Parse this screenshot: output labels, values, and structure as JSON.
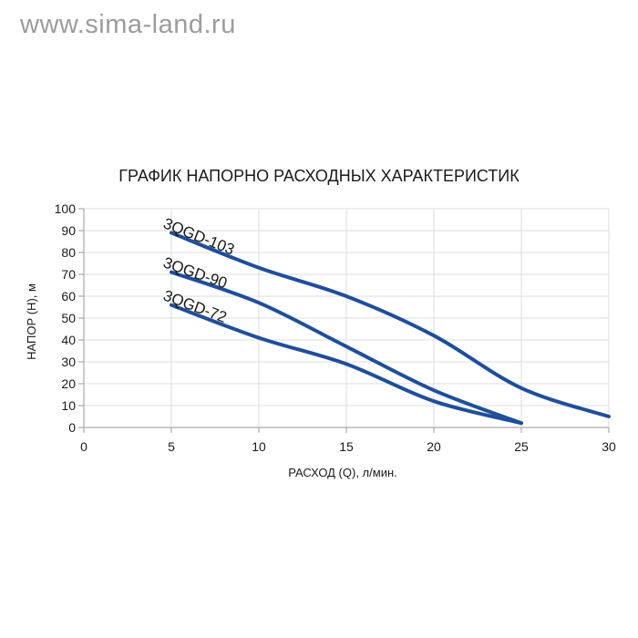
{
  "watermark": {
    "text": "www.sima-land.ru"
  },
  "colors": {
    "line": "#1f4e9b",
    "grid": "#dcdcdc",
    "axis": "#ababab",
    "text": "#1a1a1a",
    "watermark": "#9c9c9c"
  },
  "chart_data": {
    "type": "line",
    "title": "ГРАФИК НАПОРНО РАСХОДНЫХ ХАРАКТЕРИСТИК",
    "xlabel": "РАСХОД (Q), л/мин.",
    "ylabel": "НАПОР (Н), м",
    "xlim": [
      0,
      30
    ],
    "ylim": [
      0,
      100
    ],
    "xticks": [
      0,
      5,
      10,
      15,
      20,
      25,
      30
    ],
    "yticks": [
      0,
      10,
      20,
      30,
      40,
      50,
      60,
      70,
      80,
      90,
      100
    ],
    "grid": true,
    "legend": "labels-on-curves",
    "series": [
      {
        "name": "3QGD-103",
        "x": [
          5,
          10,
          15,
          20,
          25,
          30
        ],
        "y": [
          89,
          73,
          60,
          42,
          18,
          5
        ]
      },
      {
        "name": "3QGD-90",
        "x": [
          5,
          10,
          15,
          20,
          25
        ],
        "y": [
          71,
          57,
          37,
          17,
          2
        ]
      },
      {
        "name": "3QGD-72",
        "x": [
          5,
          10,
          15,
          20,
          25
        ],
        "y": [
          56,
          41,
          29,
          12,
          2
        ]
      }
    ]
  }
}
